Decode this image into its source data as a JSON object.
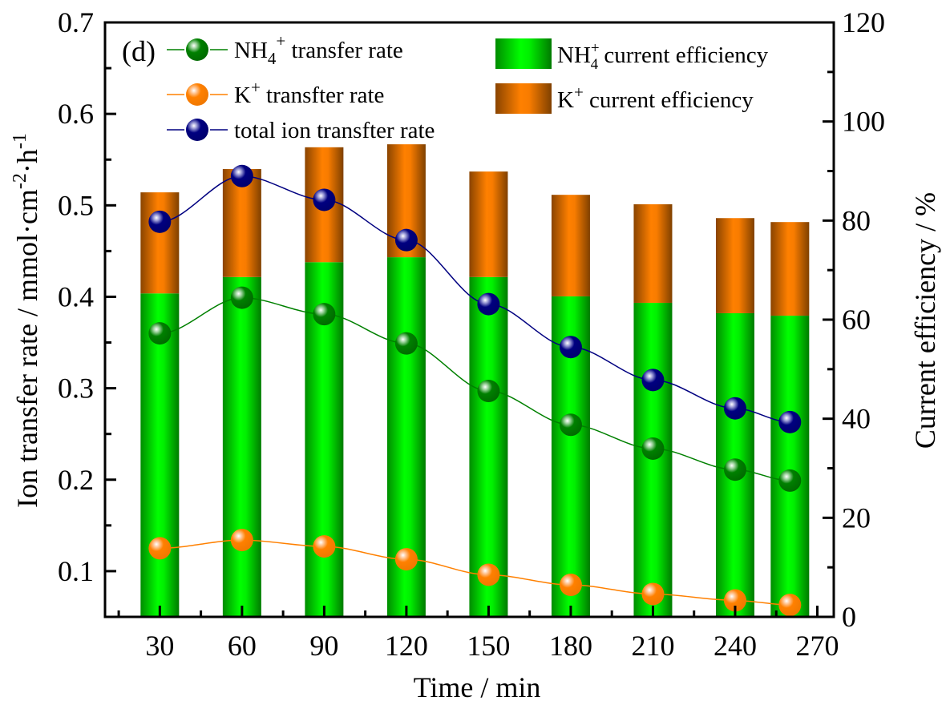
{
  "chart_data": {
    "type": "bar",
    "panel_label": "(d)",
    "xlabel": "Time / min",
    "ylabel_left": "Ion transfer rate / mmol·cm^-2·h^-1",
    "ylabel_right": "Current efficiency / %",
    "xlim": [
      10,
      276
    ],
    "ylim_left": [
      0.05,
      0.7
    ],
    "ylim_right": [
      0,
      120
    ],
    "x_ticks": [
      30,
      60,
      90,
      120,
      150,
      180,
      210,
      240,
      270
    ],
    "y_ticks_left": [
      "0.1",
      "0.2",
      "0.3",
      "0.4",
      "0.5",
      "0.6",
      "0.7"
    ],
    "y_ticks_right": [
      "0",
      "20",
      "40",
      "60",
      "80",
      "100",
      "120"
    ],
    "x": [
      30,
      60,
      90,
      120,
      150,
      180,
      210,
      240,
      260
    ],
    "bars": {
      "stacked": true,
      "axis": "right",
      "series": [
        {
          "name": "NH4+ current efficiency",
          "color": "#00ff00",
          "values": [
            65.3,
            68.6,
            71.6,
            72.6,
            68.6,
            64.7,
            63.4,
            61.3,
            60.8
          ]
        },
        {
          "name": "K+ current efficiency",
          "color": "#ff8000",
          "values": [
            20.4,
            21.8,
            23.2,
            22.8,
            21.3,
            20.5,
            19.9,
            19.2,
            18.9
          ]
        }
      ]
    },
    "lines": {
      "axis": "left",
      "series": [
        {
          "name": "NH4+ transfer rate",
          "color": "#008000",
          "values": [
            0.36,
            0.399,
            0.381,
            0.349,
            0.297,
            0.26,
            0.234,
            0.211,
            0.199
          ]
        },
        {
          "name": "K+ transfter rate",
          "color": "#ff8000",
          "values": [
            0.125,
            0.134,
            0.127,
            0.113,
            0.096,
            0.085,
            0.075,
            0.068,
            0.063
          ]
        },
        {
          "name": "total ion transfter rate",
          "color": "#000080",
          "values": [
            0.482,
            0.532,
            0.506,
            0.462,
            0.392,
            0.345,
            0.309,
            0.278,
            0.263
          ]
        }
      ]
    },
    "legend": {
      "placement": "top",
      "lines": [
        {
          "main": "NH",
          "sub": "4",
          "sup": "+",
          "rest": " transfer rate"
        },
        {
          "main": "K",
          "sub": "",
          "sup": "+",
          "rest": " transfter rate"
        },
        {
          "main": "",
          "sub": "",
          "sup": "",
          "rest": "total ion transfter rate"
        }
      ],
      "bars": [
        {
          "main": "NH",
          "sub": "4",
          "sup": "+",
          "rest": " current efficiency"
        },
        {
          "main": "K",
          "sub": "",
          "sup": "+",
          "rest": " current efficiency"
        }
      ]
    }
  }
}
